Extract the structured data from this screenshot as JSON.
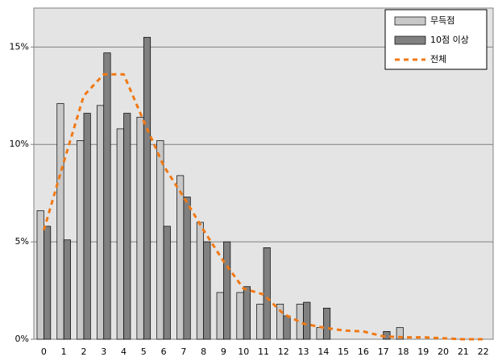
{
  "chart_data": {
    "type": "bar",
    "categories": [
      "0",
      "1",
      "2",
      "3",
      "4",
      "5",
      "6",
      "7",
      "8",
      "9",
      "10",
      "11",
      "12",
      "13",
      "14",
      "15",
      "16",
      "17",
      "18",
      "19",
      "20",
      "21",
      "22"
    ],
    "series": [
      {
        "name": "무득점",
        "type": "bar",
        "color": "#c8c8c8",
        "values": [
          6.6,
          12.1,
          10.2,
          12.0,
          10.8,
          11.4,
          10.2,
          8.4,
          6.0,
          2.4,
          2.4,
          1.8,
          1.8,
          1.8,
          0.6,
          0,
          0,
          0,
          0.6,
          0,
          0,
          0,
          0
        ]
      },
      {
        "name": "10점 이상",
        "type": "bar",
        "color": "#808080",
        "values": [
          5.8,
          5.1,
          11.6,
          14.7,
          11.6,
          15.5,
          5.8,
          7.3,
          5.0,
          5.0,
          2.7,
          4.7,
          1.2,
          1.9,
          1.6,
          0,
          0,
          0.4,
          0,
          0,
          0,
          0,
          0
        ]
      },
      {
        "name": "전체",
        "type": "line",
        "color": "#f07814",
        "values": [
          5.6,
          9.1,
          12.5,
          13.6,
          13.6,
          11.2,
          8.9,
          7.3,
          5.6,
          4.0,
          2.6,
          2.3,
          1.3,
          0.8,
          0.6,
          0.45,
          0.4,
          0.15,
          0.1,
          0.1,
          0.05,
          0,
          0
        ]
      }
    ],
    "ylim": [
      0,
      17
    ],
    "yticks": [
      {
        "value": 0,
        "label": "0%"
      },
      {
        "value": 5,
        "label": "5%"
      },
      {
        "value": 10,
        "label": "10%"
      },
      {
        "value": 15,
        "label": "15%"
      }
    ],
    "grid": true,
    "legend": "top-right"
  }
}
